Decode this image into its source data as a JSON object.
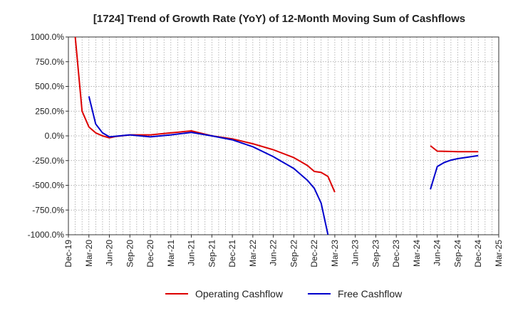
{
  "chart_data": {
    "type": "line",
    "title": "[1724]  Trend of Growth Rate (YoY) of 12-Month Moving Sum of Cashflows",
    "xlabel": "",
    "ylabel": "",
    "ylim": [
      -1000,
      1000
    ],
    "y_ticks": [
      1000,
      750,
      500,
      250,
      0,
      -250,
      -500,
      -750,
      -1000
    ],
    "y_tick_labels": [
      "1000.0%",
      "750.0%",
      "500.0%",
      "250.0%",
      "0.0%",
      "-250.0%",
      "-500.0%",
      "-750.0%",
      "-1000.0%"
    ],
    "x_start": "2019-12",
    "x_end": "2025-03",
    "x_tick_labels": [
      "Dec-19",
      "Mar-20",
      "Jun-20",
      "Sep-20",
      "Dec-20",
      "Mar-21",
      "Jun-21",
      "Sep-21",
      "Dec-21",
      "Mar-22",
      "Jun-22",
      "Sep-22",
      "Dec-22",
      "Mar-23",
      "Jun-23",
      "Sep-23",
      "Dec-23",
      "Mar-24",
      "Jun-24",
      "Sep-24",
      "Dec-24",
      "Mar-25"
    ],
    "grid": true,
    "legend_position": "bottom",
    "series": [
      {
        "name": "Operating Cashflow",
        "color": "#dd0000",
        "points": [
          [
            "2020-01",
            1000
          ],
          [
            "2020-02",
            250
          ],
          [
            "2020-03",
            90
          ],
          [
            "2020-04",
            30
          ],
          [
            "2020-05",
            0
          ],
          [
            "2020-06",
            -20
          ],
          [
            "2020-07",
            -5
          ],
          [
            "2020-09",
            10
          ],
          [
            "2020-12",
            10
          ],
          [
            "2021-03",
            30
          ],
          [
            "2021-06",
            50
          ],
          [
            "2021-09",
            0
          ],
          [
            "2021-12",
            -30
          ],
          [
            "2022-03",
            -80
          ],
          [
            "2022-06",
            -140
          ],
          [
            "2022-09",
            -220
          ],
          [
            "2022-10",
            -260
          ],
          [
            "2022-11",
            -300
          ],
          [
            "2022-12",
            -360
          ],
          [
            "2023-01",
            -370
          ],
          [
            "2023-02",
            -410
          ],
          [
            "2023-03",
            -570
          ],
          null,
          [
            "2024-05",
            -100
          ],
          [
            "2024-06",
            -155
          ],
          [
            "2024-09",
            -160
          ],
          [
            "2024-12",
            -160
          ]
        ]
      },
      {
        "name": "Free Cashflow",
        "color": "#0000cc",
        "points": [
          [
            "2020-03",
            400
          ],
          [
            "2020-04",
            120
          ],
          [
            "2020-05",
            30
          ],
          [
            "2020-06",
            -10
          ],
          [
            "2020-09",
            10
          ],
          [
            "2020-12",
            -10
          ],
          [
            "2021-03",
            10
          ],
          [
            "2021-06",
            35
          ],
          [
            "2021-09",
            0
          ],
          [
            "2021-12",
            -40
          ],
          [
            "2022-03",
            -110
          ],
          [
            "2022-06",
            -210
          ],
          [
            "2022-09",
            -330
          ],
          [
            "2022-10",
            -390
          ],
          [
            "2022-11",
            -450
          ],
          [
            "2022-12",
            -530
          ],
          [
            "2023-01",
            -680
          ],
          [
            "2023-02",
            -1000
          ],
          null,
          [
            "2024-05",
            -540
          ],
          [
            "2024-06",
            -310
          ],
          [
            "2024-07",
            -270
          ],
          [
            "2024-08",
            -245
          ],
          [
            "2024-09",
            -230
          ],
          [
            "2024-12",
            -200
          ]
        ]
      }
    ]
  }
}
